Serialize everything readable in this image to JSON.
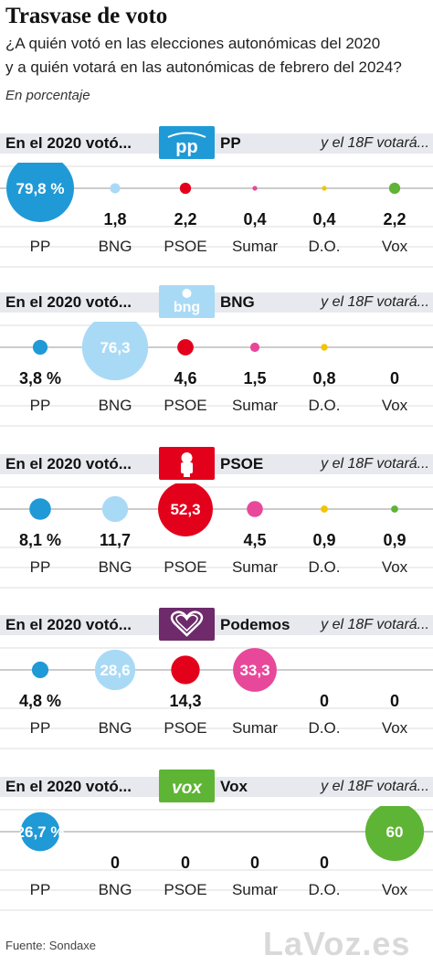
{
  "title": "Trasvase de voto",
  "subtitle_line1": "¿A quién votó en las elecciones autonómicas del 2020",
  "subtitle_line2": "y a quién votará en las autonómicas de febrero del 2024?",
  "unit_note": "En porcentaje",
  "header_from": "En el 2020 votó...",
  "header_to": "y el 18F votará...",
  "source": "Fuente: Sondaxe",
  "brand": "LaVoz.es",
  "colors": {
    "PP": "#1f9ad6",
    "BNG": "#a9daf5",
    "PSOE": "#e3001b",
    "Sumar": "#e8489a",
    "D.O.": "#f2c500",
    "Vox": "#5eb434",
    "header_bg": "#e7e9ee",
    "gridline": "#dddddd",
    "baseline": "#999999"
  },
  "logos": {
    "PP": {
      "text": "pp",
      "color": "#1f9ad6",
      "icon": "pp-logo-icon"
    },
    "BNG": {
      "text": "bng",
      "color": "#a9daf5",
      "icon": "bng-logo-icon"
    },
    "PSOE": {
      "text": "",
      "color": "#e3001b",
      "icon": "psoe-fist-rose-icon"
    },
    "Podemos": {
      "text": "",
      "color": "#6e2a6b",
      "icon": "podemos-heart-icon"
    },
    "Vox": {
      "text": "vox",
      "color": "#5eb434",
      "icon": "vox-logo-icon"
    }
  },
  "chart_data": [
    {
      "type": "scatter",
      "title": "PP",
      "categories": [
        "PP",
        "BNG",
        "PSOE",
        "Sumar",
        "D.O.",
        "Vox"
      ],
      "values": [
        79.8,
        1.8,
        2.2,
        0.4,
        0.4,
        2.2
      ],
      "labels": [
        "79,8 %",
        "1,8",
        "2,2",
        "0,4",
        "0,4",
        "2,2"
      ]
    },
    {
      "type": "scatter",
      "title": "BNG",
      "categories": [
        "PP",
        "BNG",
        "PSOE",
        "Sumar",
        "D.O.",
        "Vox"
      ],
      "values": [
        3.8,
        76.3,
        4.6,
        1.5,
        0.8,
        0
      ],
      "labels": [
        "3,8 %",
        "76,3",
        "4,6",
        "1,5",
        "0,8",
        "0"
      ]
    },
    {
      "type": "scatter",
      "title": "PSOE",
      "categories": [
        "PP",
        "BNG",
        "PSOE",
        "Sumar",
        "D.O.",
        "Vox"
      ],
      "values": [
        8.1,
        11.7,
        52.3,
        4.5,
        0.9,
        0.9
      ],
      "labels": [
        "8,1 %",
        "11,7",
        "52,3",
        "4,5",
        "0,9",
        "0,9"
      ]
    },
    {
      "type": "scatter",
      "title": "Podemos",
      "categories": [
        "PP",
        "BNG",
        "PSOE",
        "Sumar",
        "D.O.",
        "Vox"
      ],
      "values": [
        4.8,
        28.6,
        14.3,
        33.3,
        0,
        0
      ],
      "labels": [
        "4,8 %",
        "28,6",
        "14,3",
        "33,3",
        "0",
        "0"
      ]
    },
    {
      "type": "scatter",
      "title": "Vox",
      "categories": [
        "PP",
        "BNG",
        "PSOE",
        "Sumar",
        "D.O.",
        "Vox"
      ],
      "values": [
        26.7,
        0,
        0,
        0,
        0,
        60
      ],
      "labels": [
        "26,7 %",
        "0",
        "0",
        "0",
        "0",
        "60"
      ]
    }
  ]
}
